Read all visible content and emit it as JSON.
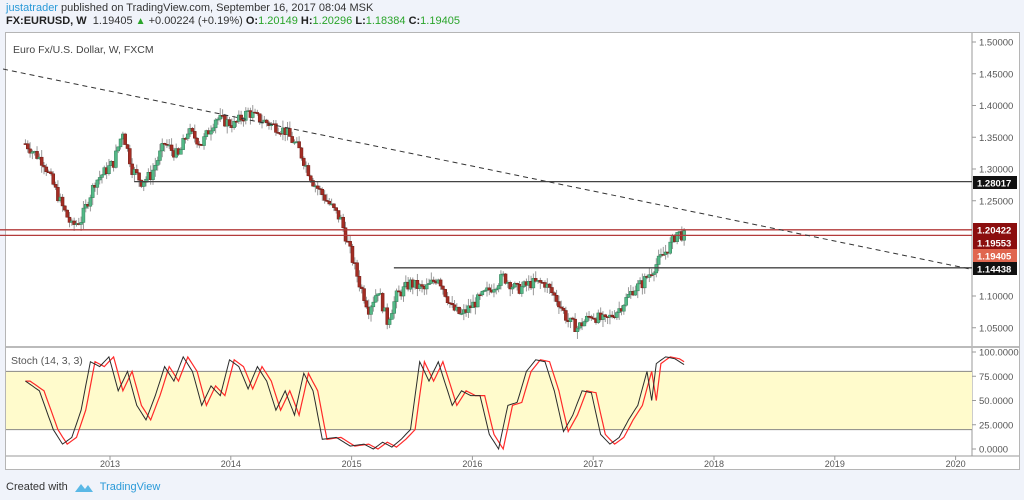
{
  "header": {
    "user": "justatrader",
    "published_text": "published on TradingView.com, September 16, 2017 08:04 MSK",
    "symbol": "FX:EURUSD, W",
    "last": "1.19405",
    "change_arrow": "▲",
    "change": "+0.00224 (+0.19%)",
    "o_label": "O:",
    "o": "1.20149",
    "h_label": "H:",
    "h": "1.20296",
    "l_label": "L:",
    "l": "1.18384",
    "c_label": "C:",
    "c": "1.19405"
  },
  "chart_title": "Euro Fx/U.S. Dollar, W, FXCM",
  "stoch_title": "Stoch (14, 3, 3)",
  "footer": {
    "created_with": "Created with",
    "brand": "TradingView"
  },
  "colors": {
    "up": "#53b987",
    "down": "#a32d24",
    "wick": "#999999",
    "hline": "#444444",
    "redline": "#b33a3a",
    "trend": "#333333",
    "stoch_k": "#2b2b2b",
    "stoch_d": "#ff2a2a",
    "band": "#fffbcc"
  },
  "chart_data": {
    "type": "candlestick",
    "title": "Euro Fx/U.S. Dollar, W, FXCM",
    "symbol": "FX:EURUSD",
    "interval": "W",
    "price_axis": {
      "ticks": [
        "1.50000",
        "1.45000",
        "1.40000",
        "1.35000",
        "1.30000",
        "1.25000",
        "1.10000",
        "1.05000"
      ],
      "range": [
        1.02,
        1.52
      ]
    },
    "time_axis": {
      "ticks": [
        "2013",
        "2014",
        "2015",
        "2016",
        "2017",
        "2018",
        "2019",
        "2020"
      ]
    },
    "price_labels": [
      {
        "value": "1.28017",
        "bg": "#111111"
      },
      {
        "value": "1.20422",
        "bg": "#8b0e0e"
      },
      {
        "value": "1.19553",
        "bg": "#8b0e0e"
      },
      {
        "value": "1.19405",
        "bg": "#e0664f"
      },
      {
        "value": "1.14438",
        "bg": "#111111"
      }
    ],
    "horizontal_lines": [
      {
        "price": 1.28017,
        "color": "#444444",
        "x_start_year": 2013.2
      },
      {
        "price": 1.20422,
        "color": "#b33a3a",
        "x_start_year": 2012.0
      },
      {
        "price": 1.19553,
        "color": "#b33a3a",
        "x_start_year": 2012.0
      },
      {
        "price": 1.14438,
        "color": "#444444",
        "x_start_year": 2015.35
      }
    ],
    "trendline": {
      "style": "dashed",
      "from": {
        "year": 2012.3,
        "price": 1.46
      },
      "to": {
        "year": 2020.3,
        "price": 1.145
      }
    },
    "close_path": {
      "start_year": 2012.3,
      "step_year": 0.0192,
      "points": [
        [
          0,
          1.34
        ],
        [
          8,
          1.31
        ],
        [
          16,
          1.24
        ],
        [
          20,
          1.21
        ],
        [
          24,
          1.22
        ],
        [
          30,
          1.28
        ],
        [
          38,
          1.31
        ],
        [
          42,
          1.36
        ],
        [
          46,
          1.3
        ],
        [
          50,
          1.28
        ],
        [
          54,
          1.29
        ],
        [
          60,
          1.34
        ],
        [
          66,
          1.32
        ],
        [
          70,
          1.36
        ],
        [
          76,
          1.34
        ],
        [
          82,
          1.38
        ],
        [
          90,
          1.37
        ],
        [
          96,
          1.39
        ],
        [
          100,
          1.38
        ],
        [
          106,
          1.37
        ],
        [
          112,
          1.36
        ],
        [
          118,
          1.33
        ],
        [
          124,
          1.28
        ],
        [
          130,
          1.25
        ],
        [
          136,
          1.22
        ],
        [
          140,
          1.17
        ],
        [
          144,
          1.12
        ],
        [
          148,
          1.08
        ],
        [
          152,
          1.11
        ],
        [
          156,
          1.06
        ],
        [
          160,
          1.1
        ],
        [
          166,
          1.12
        ],
        [
          172,
          1.11
        ],
        [
          178,
          1.13
        ],
        [
          184,
          1.08
        ],
        [
          188,
          1.07
        ],
        [
          194,
          1.09
        ],
        [
          200,
          1.11
        ],
        [
          206,
          1.13
        ],
        [
          212,
          1.11
        ],
        [
          218,
          1.12
        ],
        [
          224,
          1.12
        ],
        [
          230,
          1.09
        ],
        [
          234,
          1.06
        ],
        [
          238,
          1.05
        ],
        [
          244,
          1.07
        ],
        [
          250,
          1.06
        ],
        [
          256,
          1.08
        ],
        [
          262,
          1.11
        ],
        [
          266,
          1.12
        ],
        [
          270,
          1.14
        ],
        [
          274,
          1.16
        ],
        [
          278,
          1.18
        ],
        [
          281,
          1.2
        ],
        [
          284,
          1.194
        ]
      ]
    },
    "stochastic": {
      "params": "14, 3, 3",
      "ticks": [
        "100.0000",
        "75.0000",
        "50.0000",
        "25.0000",
        "0.0000"
      ],
      "band": [
        20,
        80
      ],
      "k_points": [
        [
          0,
          70
        ],
        [
          6,
          60
        ],
        [
          12,
          20
        ],
        [
          16,
          5
        ],
        [
          20,
          12
        ],
        [
          24,
          40
        ],
        [
          28,
          90
        ],
        [
          32,
          85
        ],
        [
          36,
          95
        ],
        [
          40,
          60
        ],
        [
          44,
          80
        ],
        [
          48,
          45
        ],
        [
          52,
          30
        ],
        [
          56,
          55
        ],
        [
          60,
          85
        ],
        [
          64,
          70
        ],
        [
          68,
          95
        ],
        [
          72,
          80
        ],
        [
          76,
          45
        ],
        [
          80,
          65
        ],
        [
          84,
          55
        ],
        [
          88,
          92
        ],
        [
          92,
          85
        ],
        [
          96,
          62
        ],
        [
          100,
          85
        ],
        [
          104,
          70
        ],
        [
          108,
          40
        ],
        [
          112,
          60
        ],
        [
          116,
          35
        ],
        [
          120,
          78
        ],
        [
          124,
          60
        ],
        [
          128,
          10
        ],
        [
          134,
          12
        ],
        [
          140,
          3
        ],
        [
          146,
          5
        ],
        [
          150,
          0
        ],
        [
          154,
          7
        ],
        [
          158,
          2
        ],
        [
          162,
          10
        ],
        [
          166,
          20
        ],
        [
          170,
          90
        ],
        [
          174,
          70
        ],
        [
          178,
          90
        ],
        [
          184,
          45
        ],
        [
          188,
          60
        ],
        [
          192,
          55
        ],
        [
          196,
          55
        ],
        [
          200,
          15
        ],
        [
          204,
          0
        ],
        [
          208,
          45
        ],
        [
          212,
          48
        ],
        [
          216,
          80
        ],
        [
          220,
          92
        ],
        [
          224,
          90
        ],
        [
          228,
          60
        ],
        [
          232,
          18
        ],
        [
          236,
          35
        ],
        [
          240,
          60
        ],
        [
          244,
          58
        ],
        [
          248,
          15
        ],
        [
          252,
          5
        ],
        [
          256,
          12
        ],
        [
          260,
          30
        ],
        [
          264,
          45
        ],
        [
          268,
          80
        ],
        [
          270,
          50
        ],
        [
          272,
          88
        ],
        [
          276,
          95
        ],
        [
          280,
          93
        ],
        [
          284,
          87
        ]
      ]
    }
  }
}
